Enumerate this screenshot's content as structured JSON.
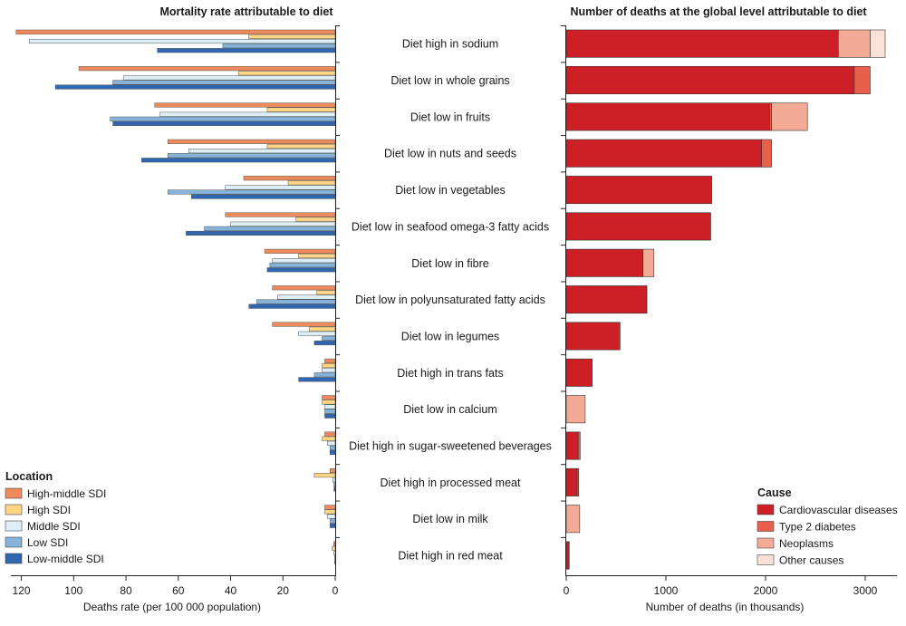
{
  "chart_data": [
    {
      "type": "bar",
      "orientation": "horizontal",
      "title": "Mortality rate attributable to diet",
      "xlabel": "Deaths rate (per 100 000 population)",
      "ylabel": "",
      "xlim": [
        124,
        0
      ],
      "xticks": [
        "120",
        "100",
        "80",
        "60",
        "40",
        "20",
        "0"
      ],
      "categories": [
        "Diet high in sodium",
        "Diet low in whole grains",
        "Diet low in fruits",
        "Diet low in nuts and seeds",
        "Diet low in vegetables",
        "Diet low in seafood omega-3 fatty acids",
        "Diet low in fibre",
        "Diet low in polyunsaturated fatty acids",
        "Diet low in legumes",
        "Diet high in trans fats",
        "Diet low in calcium",
        "Diet high in sugar-sweetened beverages",
        "Diet high in processed meat",
        "Diet low in milk",
        "Diet high in red meat"
      ],
      "legend_title": "Location",
      "legend_position": "bottom-left",
      "series": [
        {
          "name": "High-middle SDI",
          "color": "#ef8a5c",
          "values": [
            122,
            98,
            69,
            64,
            35,
            42,
            27,
            24,
            24,
            4,
            5,
            4,
            2,
            4,
            0.6
          ]
        },
        {
          "name": "High SDI",
          "color": "#fdd585",
          "values": [
            33,
            37,
            26,
            26,
            18,
            15,
            14,
            7,
            10,
            5,
            5,
            5,
            8,
            4,
            1.2
          ]
        },
        {
          "name": "Middle SDI",
          "color": "#deeef7",
          "values": [
            117,
            81,
            67,
            56,
            42,
            40,
            24,
            22,
            14,
            5,
            4,
            3,
            1,
            3,
            0.5
          ]
        },
        {
          "name": "Low SDI",
          "color": "#86b3d9",
          "values": [
            43,
            85,
            86,
            64,
            64,
            50,
            25,
            30,
            5,
            8,
            4,
            2,
            0.5,
            2,
            0.2
          ]
        },
        {
          "name": "Low-middle SDI",
          "color": "#2e66b0",
          "values": [
            68,
            107,
            85,
            74,
            55,
            57,
            26,
            33,
            8,
            14,
            4,
            2,
            0.5,
            2,
            0.2
          ]
        }
      ]
    },
    {
      "type": "bar",
      "orientation": "horizontal",
      "stacked": true,
      "title": "Number of deaths at the global level attributable to diet",
      "xlabel": "Number of deaths (in thousands)",
      "ylabel": "",
      "xlim": [
        0,
        3350
      ],
      "xticks": [
        "0",
        "1000",
        "2000",
        "3000"
      ],
      "categories": [
        "Diet high in sodium",
        "Diet low in whole grains",
        "Diet low in fruits",
        "Diet low in nuts and seeds",
        "Diet low in vegetables",
        "Diet low in seafood omega-3 fatty acids",
        "Diet low in fibre",
        "Diet low in polyunsaturated fatty acids",
        "Diet low in legumes",
        "Diet high in trans fats",
        "Diet low in calcium",
        "Diet high in sugar-sweetened beverages",
        "Diet high in processed meat",
        "Diet low in milk",
        "Diet high in red meat"
      ],
      "legend_title": "Cause",
      "legend_position": "bottom-right",
      "series": [
        {
          "name": "Cardiovascular diseases",
          "color": "#cc1f26",
          "values": [
            2730,
            2890,
            2040,
            1960,
            1460,
            1450,
            770,
            810,
            540,
            260,
            0,
            120,
            110,
            0,
            22
          ]
        },
        {
          "name": "Type 2 diabetes",
          "color": "#e8604a",
          "values": [
            0,
            160,
            20,
            100,
            0,
            0,
            0,
            0,
            0,
            0,
            0,
            20,
            15,
            0,
            8
          ]
        },
        {
          "name": "Neoplasms",
          "color": "#f4ab96",
          "values": [
            320,
            0,
            360,
            0,
            0,
            0,
            110,
            0,
            0,
            0,
            190,
            0,
            0,
            135,
            0
          ]
        },
        {
          "name": "Other causes",
          "color": "#fbe0d8",
          "values": [
            150,
            0,
            0,
            0,
            0,
            0,
            0,
            0,
            0,
            0,
            0,
            0,
            0,
            0,
            0
          ]
        }
      ]
    }
  ]
}
